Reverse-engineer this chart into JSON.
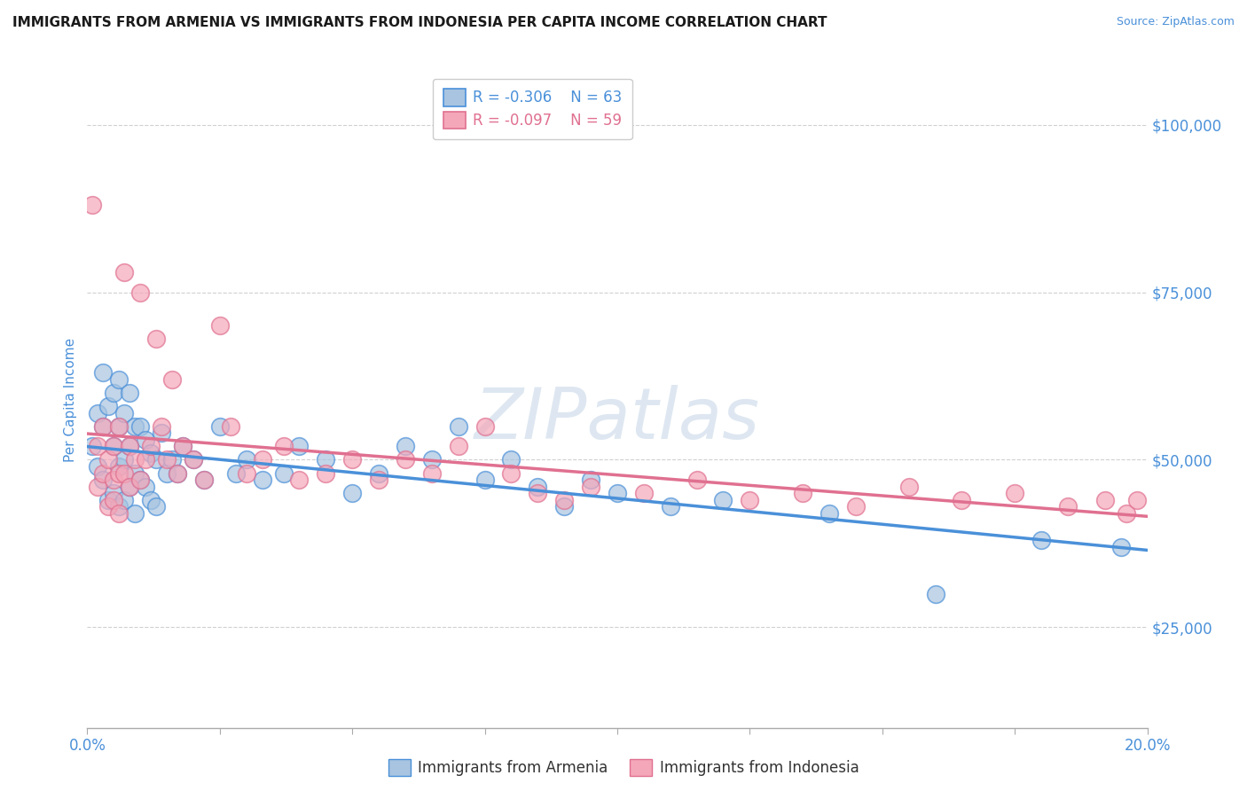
{
  "title": "IMMIGRANTS FROM ARMENIA VS IMMIGRANTS FROM INDONESIA PER CAPITA INCOME CORRELATION CHART",
  "source": "Source: ZipAtlas.com",
  "ylabel": "Per Capita Income",
  "xlabel": "",
  "xlim": [
    0.0,
    0.2
  ],
  "ylim": [
    10000,
    108000
  ],
  "yticks": [
    25000,
    50000,
    75000,
    100000
  ],
  "ytick_labels": [
    "$25,000",
    "$50,000",
    "$75,000",
    "$100,000"
  ],
  "xticks": [
    0.0,
    0.025,
    0.05,
    0.075,
    0.1,
    0.125,
    0.15,
    0.175,
    0.2
  ],
  "xtick_labels_show": [
    "0.0%",
    "20.0%"
  ],
  "armenia_color": "#a8c4e0",
  "indonesia_color": "#f4a7b9",
  "armenia_line_color": "#4a90d9",
  "indonesia_line_color": "#e07090",
  "legend_R_armenia": "R = -0.306",
  "legend_N_armenia": "N = 63",
  "legend_R_indonesia": "R = -0.097",
  "legend_N_indonesia": "N = 59",
  "watermark": "ZIPatlas",
  "title_color": "#1a1a1a",
  "source_color": "#4a90d9",
  "axis_label_color": "#4a90d9",
  "tick_color": "#4a90d9",
  "background_color": "#ffffff",
  "armenia_x": [
    0.001,
    0.002,
    0.002,
    0.003,
    0.003,
    0.003,
    0.004,
    0.004,
    0.005,
    0.005,
    0.005,
    0.006,
    0.006,
    0.006,
    0.006,
    0.007,
    0.007,
    0.007,
    0.008,
    0.008,
    0.008,
    0.009,
    0.009,
    0.009,
    0.01,
    0.01,
    0.011,
    0.011,
    0.012,
    0.012,
    0.013,
    0.013,
    0.014,
    0.015,
    0.016,
    0.017,
    0.018,
    0.02,
    0.022,
    0.025,
    0.028,
    0.03,
    0.033,
    0.037,
    0.04,
    0.045,
    0.05,
    0.055,
    0.06,
    0.065,
    0.07,
    0.075,
    0.08,
    0.085,
    0.09,
    0.095,
    0.1,
    0.11,
    0.12,
    0.14,
    0.16,
    0.18,
    0.195
  ],
  "armenia_y": [
    52000,
    57000,
    49000,
    63000,
    55000,
    47000,
    58000,
    44000,
    60000,
    52000,
    45000,
    62000,
    55000,
    49000,
    43000,
    57000,
    50000,
    44000,
    60000,
    52000,
    46000,
    55000,
    48000,
    42000,
    55000,
    47000,
    53000,
    46000,
    51000,
    44000,
    50000,
    43000,
    54000,
    48000,
    50000,
    48000,
    52000,
    50000,
    47000,
    55000,
    48000,
    50000,
    47000,
    48000,
    52000,
    50000,
    45000,
    48000,
    52000,
    50000,
    55000,
    47000,
    50000,
    46000,
    43000,
    47000,
    45000,
    43000,
    44000,
    42000,
    30000,
    38000,
    37000
  ],
  "indonesia_x": [
    0.001,
    0.002,
    0.002,
    0.003,
    0.003,
    0.004,
    0.004,
    0.005,
    0.005,
    0.005,
    0.006,
    0.006,
    0.006,
    0.007,
    0.007,
    0.008,
    0.008,
    0.009,
    0.01,
    0.01,
    0.011,
    0.012,
    0.013,
    0.014,
    0.015,
    0.016,
    0.017,
    0.018,
    0.02,
    0.022,
    0.025,
    0.027,
    0.03,
    0.033,
    0.037,
    0.04,
    0.045,
    0.05,
    0.055,
    0.06,
    0.065,
    0.07,
    0.075,
    0.08,
    0.085,
    0.09,
    0.095,
    0.105,
    0.115,
    0.125,
    0.135,
    0.145,
    0.155,
    0.165,
    0.175,
    0.185,
    0.192,
    0.196,
    0.198
  ],
  "indonesia_y": [
    88000,
    52000,
    46000,
    55000,
    48000,
    50000,
    43000,
    52000,
    47000,
    44000,
    55000,
    48000,
    42000,
    78000,
    48000,
    52000,
    46000,
    50000,
    75000,
    47000,
    50000,
    52000,
    68000,
    55000,
    50000,
    62000,
    48000,
    52000,
    50000,
    47000,
    70000,
    55000,
    48000,
    50000,
    52000,
    47000,
    48000,
    50000,
    47000,
    50000,
    48000,
    52000,
    55000,
    48000,
    45000,
    44000,
    46000,
    45000,
    47000,
    44000,
    45000,
    43000,
    46000,
    44000,
    45000,
    43000,
    44000,
    42000,
    44000
  ]
}
